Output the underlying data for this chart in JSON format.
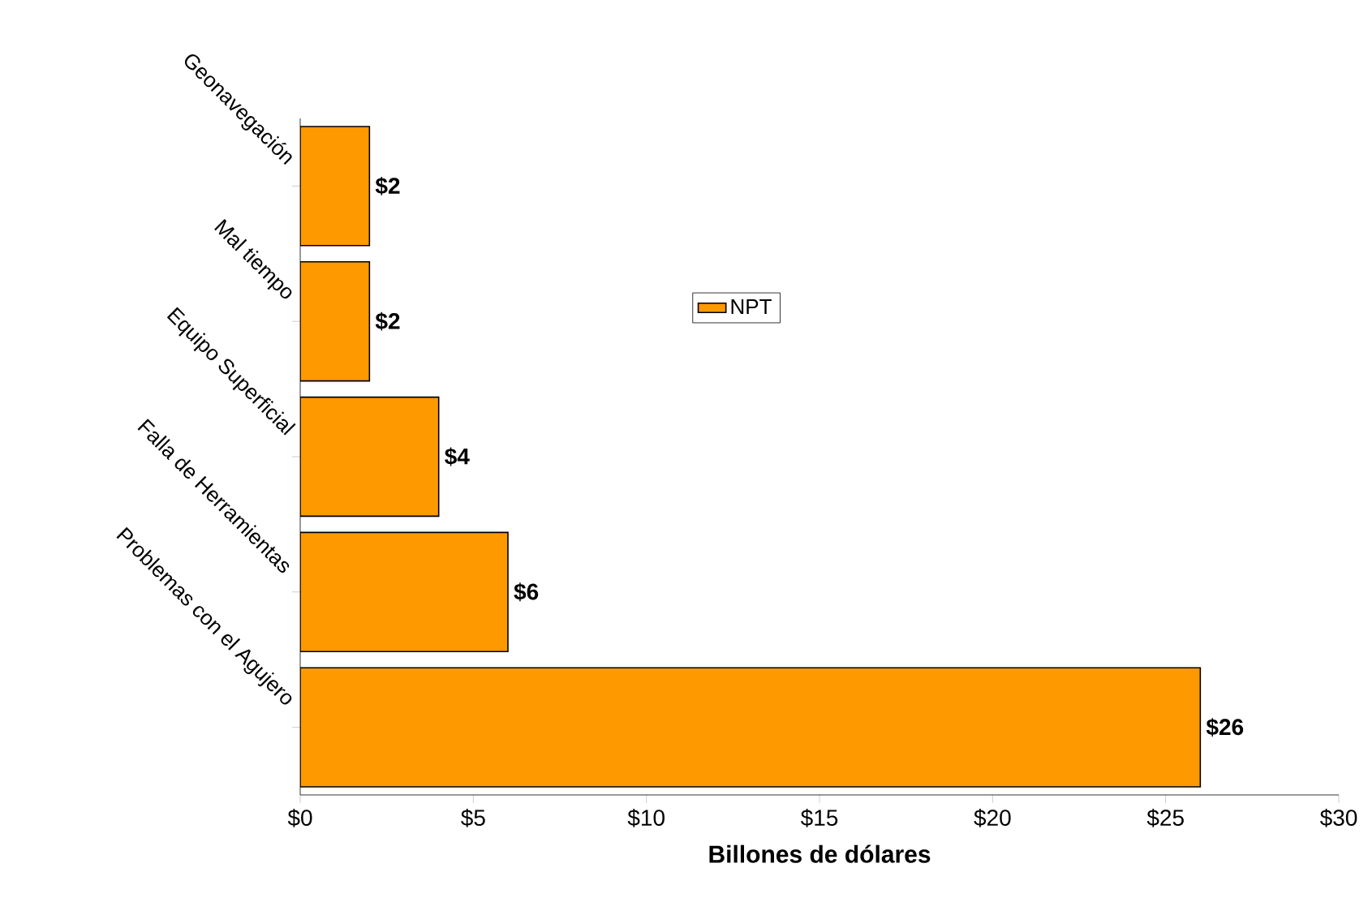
{
  "chart_data": {
    "type": "bar",
    "orientation": "horizontal",
    "xlabel": "Billones de dólares",
    "categories": [
      "Geonavegación",
      "Mal tiempo",
      "Equipo Superficial",
      "Falla de Herramientas",
      "Problemas con el Agujero"
    ],
    "series": [
      {
        "name": "NPT",
        "color": "#ff9900",
        "values": [
          2,
          2,
          4,
          6,
          26
        ],
        "value_labels": [
          "$2",
          "$2",
          "$4",
          "$6",
          "$26"
        ]
      }
    ],
    "xlim": [
      0,
      30
    ],
    "xticks": [
      {
        "value": 0,
        "label": "$0"
      },
      {
        "value": 5,
        "label": "$5"
      },
      {
        "value": 10,
        "label": "$10"
      },
      {
        "value": 15,
        "label": "$15"
      },
      {
        "value": 20,
        "label": "$20"
      },
      {
        "value": 25,
        "label": "$25"
      },
      {
        "value": 30,
        "label": "$30"
      }
    ],
    "legend": "top",
    "grid": false
  }
}
